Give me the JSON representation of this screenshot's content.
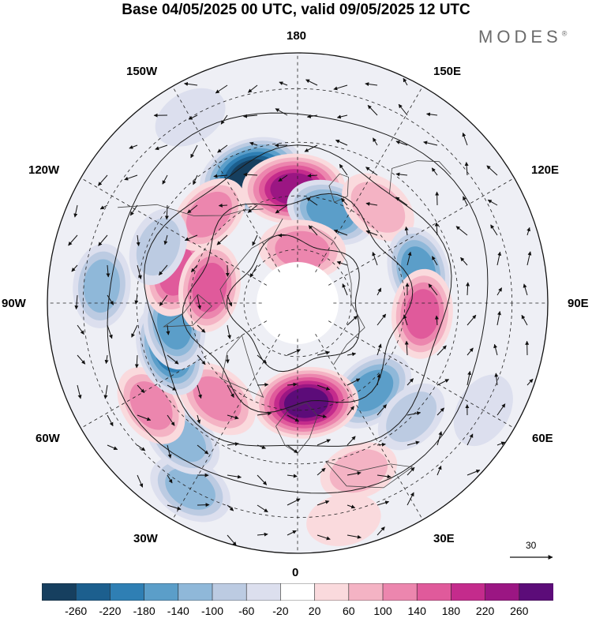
{
  "title": "Base 04/05/2025 00 UTC, valid 09/05/2025 12 UTC",
  "brand": "MODES",
  "brand_mark": "®",
  "longitudes": {
    "top": "180",
    "bottom": "0",
    "left": "90W",
    "right": "90E",
    "w150": "150W",
    "w120": "120W",
    "w60": "60W",
    "w30": "30W",
    "e150": "150E",
    "e120": "120E",
    "e60": "60E",
    "e30": "30E"
  },
  "vector_scale_label": "30",
  "colorbar": {
    "labels": [
      "-260",
      "-220",
      "-180",
      "-140",
      "-100",
      "-60",
      "-20",
      "20",
      "60",
      "100",
      "140",
      "180",
      "220",
      "260"
    ],
    "colors": [
      "#163f5f",
      "#1c5f8e",
      "#2f7fb4",
      "#5b9ec9",
      "#8fb8d9",
      "#bccbe2",
      "#dcdfee",
      "#ffffff",
      "#fadadd",
      "#f4b3c4",
      "#ec86ae",
      "#e05a9b",
      "#c42b8c",
      "#9b1683",
      "#5c0c79"
    ]
  },
  "anomaly_cells": [
    {
      "lon": 165,
      "lat": 52,
      "value": -270,
      "id": "n-pac-low"
    },
    {
      "lon": 178,
      "lat": 58,
      "value": 250,
      "id": "bering-high"
    },
    {
      "lon": 158,
      "lat": 63,
      "value": -150,
      "id": "kamchatka-low"
    },
    {
      "lon": 135,
      "lat": 55,
      "value": 90,
      "id": "okhotsk-high"
    },
    {
      "lon": 175,
      "lat": 75,
      "value": 130,
      "id": "chukchi-high"
    },
    {
      "lon": 105,
      "lat": 55,
      "value": -140,
      "id": "siberia-low"
    },
    {
      "lon": 85,
      "lat": 55,
      "value": 150,
      "id": "c-asia-high"
    },
    {
      "lon": 40,
      "lat": 58,
      "value": -160,
      "id": "russia-low"
    },
    {
      "lon": 45,
      "lat": 45,
      "value": -60,
      "id": "caspian-low"
    },
    {
      "lon": 5,
      "lat": 62,
      "value": 260,
      "id": "norway-high"
    },
    {
      "lon": 20,
      "lat": 40,
      "value": 70,
      "id": "med-high"
    },
    {
      "lon": 12,
      "lat": 28,
      "value": 40,
      "id": "n-africa-high"
    },
    {
      "lon": 60,
      "lat": 30,
      "value": -50,
      "id": "iran-low"
    },
    {
      "lon": 30,
      "lat": 30,
      "value": -120,
      "id": "atl-low-s"
    },
    {
      "lon": 40,
      "lat": 40,
      "value": -100,
      "id": "atl-low-sw"
    },
    {
      "lon": 55,
      "lat": 40,
      "value": 110,
      "id": "w-atl-high"
    },
    {
      "lon": 40,
      "lat": 55,
      "value": 130,
      "id": "c-atl-high"
    },
    {
      "lon": 70,
      "lat": 52,
      "value": -180,
      "id": "labrador-low"
    },
    {
      "lon": 80,
      "lat": 55,
      "value": -150,
      "id": "hudson-low"
    },
    {
      "lon": 95,
      "lat": 35,
      "value": -110,
      "id": "gulf-low"
    },
    {
      "lon": 105,
      "lat": 55,
      "value": 170,
      "id": "canada-high"
    },
    {
      "lon": 100,
      "lat": 65,
      "value": 150,
      "id": "arctic-can-high"
    },
    {
      "lon": 135,
      "lat": 55,
      "value": 110,
      "id": "ne-pac-high"
    },
    {
      "lon": 112,
      "lat": 48,
      "value": -70,
      "id": "rockies-low"
    },
    {
      "lon": 150,
      "lat": 30,
      "value": -40,
      "id": "e-pac-low"
    }
  ]
}
